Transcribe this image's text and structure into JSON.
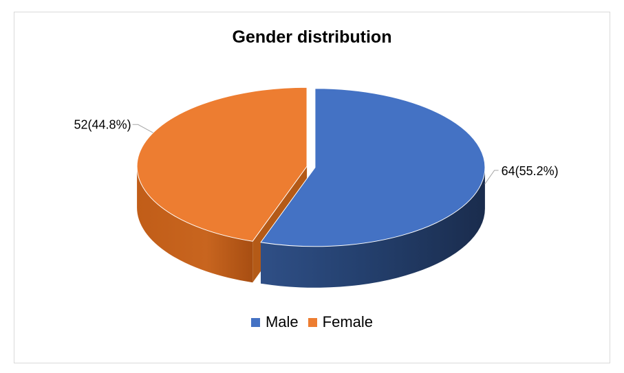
{
  "chart_data": {
    "type": "pie",
    "title": "Gender distribution",
    "categories": [
      "Male",
      "Female"
    ],
    "values": [
      64,
      52
    ],
    "data_labels": [
      "64(55.2%)",
      "52(44.8%)"
    ],
    "colors": [
      "#4472c4",
      "#ed7d31"
    ],
    "legend_position": "bottom",
    "style": "3d-exploded"
  }
}
